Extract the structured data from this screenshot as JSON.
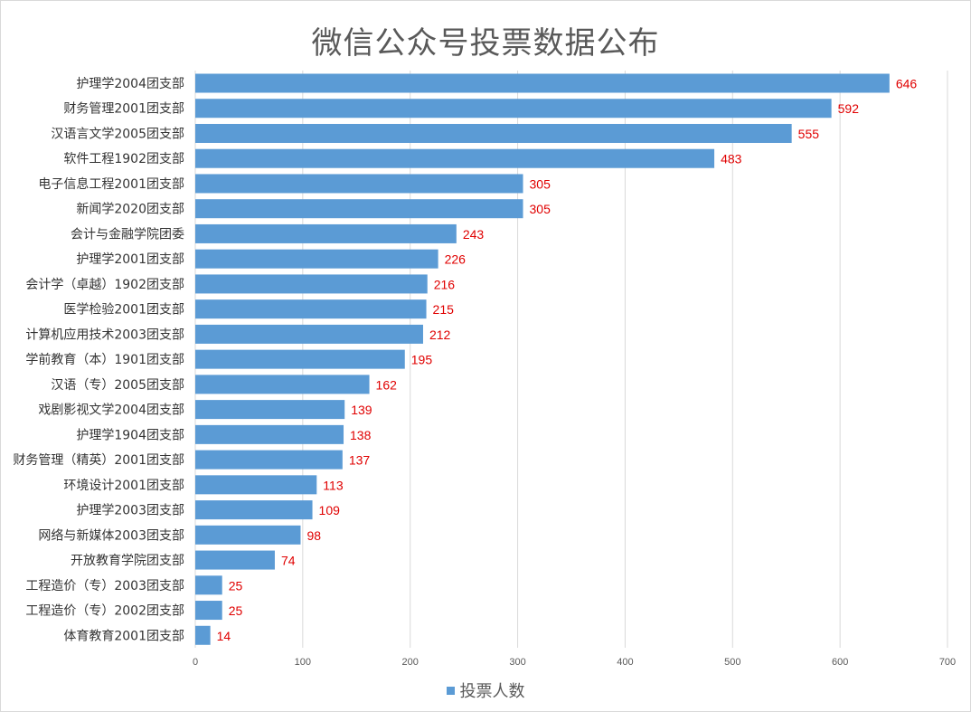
{
  "chart_data": {
    "type": "bar",
    "orientation": "horizontal",
    "title": "微信公众号投票数据公布",
    "categories": [
      "护理学2004团支部",
      "财务管理2001团支部",
      "汉语言文学2005团支部",
      "软件工程1902团支部",
      "电子信息工程2001团支部",
      "新闻学2020团支部",
      "会计与金融学院团委",
      "护理学2001团支部",
      "会计学（卓越）1902团支部",
      "医学检验2001团支部",
      "计算机应用技术2003团支部",
      "学前教育（本）1901团支部",
      "汉语（专）2005团支部",
      "戏剧影视文学2004团支部",
      "护理学1904团支部",
      "财务管理（精英）2001团支部",
      "环境设计2001团支部",
      "护理学2003团支部",
      "网络与新媒体2003团支部",
      "开放教育学院团支部",
      "工程造价（专）2003团支部",
      "工程造价（专）2002团支部",
      "体育教育2001团支部"
    ],
    "series": [
      {
        "name": "投票人数",
        "values": [
          646,
          592,
          555,
          483,
          305,
          305,
          243,
          226,
          216,
          215,
          212,
          195,
          162,
          139,
          138,
          137,
          113,
          109,
          98,
          74,
          25,
          25,
          14
        ]
      }
    ],
    "xlim": [
      0,
      700
    ],
    "xticks": [
      "0",
      "100",
      "200",
      "300",
      "400",
      "500",
      "600",
      "700"
    ],
    "grid": true,
    "legend_position": "bottom",
    "bar_color": "#5b9bd5",
    "label_color": "#e00000"
  }
}
